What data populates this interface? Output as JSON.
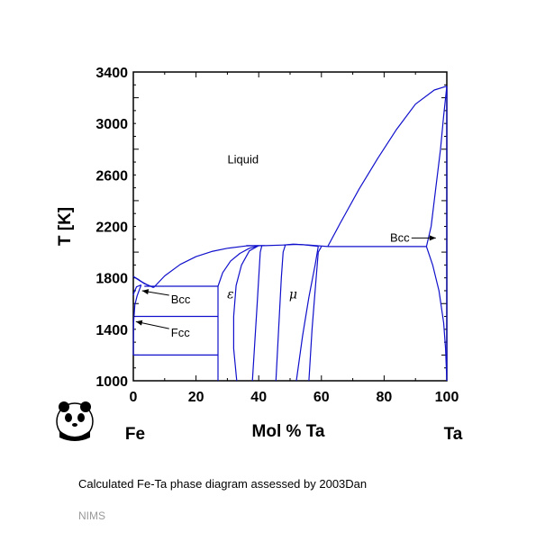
{
  "chart_data": {
    "type": "line",
    "xlabel": "Mol % Ta",
    "ylabel": "T [K]",
    "xlim": [
      0,
      100
    ],
    "ylim": [
      1000,
      3400
    ],
    "x_ticks": [
      0,
      20,
      40,
      60,
      80,
      100
    ],
    "y_ticks": [
      1000,
      1400,
      1800,
      2200,
      2600,
      3000,
      3400
    ],
    "x_tick_labels": [
      "0",
      "20",
      "40",
      "60",
      "80",
      "100"
    ],
    "y_tick_labels": [
      "1000",
      "1400",
      "1800",
      "2200",
      "2600",
      "3000",
      "3400"
    ],
    "line_color": "#1010cc",
    "components": {
      "left": "Fe",
      "right": "Ta"
    },
    "region_labels": {
      "liquid": {
        "text": "Liquid",
        "x": 35,
        "y": 2690
      },
      "epsilon": {
        "text": "ε",
        "x": 31,
        "y": 1640
      },
      "mu": {
        "text": "μ",
        "x": 51,
        "y": 1640
      }
    },
    "annotations": [
      {
        "text": "Bcc",
        "text_x": 12,
        "text_y": 1630,
        "arrow_to_x": 2.8,
        "arrow_to_y": 1700
      },
      {
        "text": "Fcc",
        "text_x": 12,
        "text_y": 1370,
        "arrow_to_x": 0.8,
        "arrow_to_y": 1460
      },
      {
        "text": "Bcc",
        "text_x": 85,
        "text_y": 2110,
        "arrow_to_x": 96.5,
        "arrow_to_y": 2110
      }
    ],
    "series": [
      {
        "points": [
          [
            0,
            1810
          ],
          [
            1.5,
            1790
          ],
          [
            3.5,
            1755
          ],
          [
            6.5,
            1725
          ]
        ]
      },
      {
        "points": [
          [
            0,
            1810
          ],
          [
            2,
            1778
          ],
          [
            4.5,
            1745
          ],
          [
            6.5,
            1725
          ]
        ]
      },
      {
        "points": [
          [
            0,
            1665
          ],
          [
            0.3,
            1690
          ],
          [
            1,
            1730
          ],
          [
            2.5,
            1745
          ]
        ]
      },
      {
        "points": [
          [
            0,
            1200
          ],
          [
            0.1,
            1450
          ],
          [
            0.5,
            1590
          ],
          [
            1.2,
            1660
          ],
          [
            2.5,
            1745
          ]
        ]
      },
      {
        "points": [
          [
            6.5,
            1725
          ],
          [
            10,
            1815
          ],
          [
            15,
            1905
          ],
          [
            20,
            1965
          ],
          [
            25,
            2005
          ],
          [
            30,
            2030
          ],
          [
            36,
            2048
          ],
          [
            42,
            2050
          ],
          [
            48,
            2055
          ],
          [
            52,
            2060
          ],
          [
            56,
            2055
          ],
          [
            62,
            2043
          ]
        ]
      },
      {
        "points": [
          [
            3.5,
            1735
          ],
          [
            27,
            1735
          ]
        ]
      },
      {
        "points": [
          [
            0.6,
            1500
          ],
          [
            27,
            1500
          ]
        ]
      },
      {
        "points": [
          [
            0,
            1200
          ],
          [
            27,
            1200
          ]
        ]
      },
      {
        "points": [
          [
            27,
            1735
          ],
          [
            27,
            1000
          ]
        ]
      },
      {
        "points": [
          [
            27,
            1735
          ],
          [
            28.5,
            1840
          ],
          [
            31,
            1930
          ],
          [
            34,
            1990
          ],
          [
            37,
            2030
          ],
          [
            40,
            2050
          ]
        ]
      },
      {
        "points": [
          [
            33,
            1000
          ],
          [
            32,
            1250
          ],
          [
            32,
            1500
          ],
          [
            32.8,
            1740
          ],
          [
            34.5,
            1900
          ],
          [
            37,
            2010
          ],
          [
            40,
            2050
          ]
        ]
      },
      {
        "points": [
          [
            36,
            2050
          ],
          [
            42,
            2050
          ]
        ]
      },
      {
        "points": [
          [
            38,
            1000
          ],
          [
            39.5,
            1600
          ],
          [
            40.5,
            2000
          ],
          [
            41,
            2050
          ]
        ]
      },
      {
        "points": [
          [
            45.5,
            1000
          ],
          [
            47.2,
            1800
          ],
          [
            47.8,
            2000
          ],
          [
            48.5,
            2055
          ]
        ]
      },
      {
        "points": [
          [
            52,
            1000
          ],
          [
            54,
            1350
          ],
          [
            56,
            1650
          ],
          [
            58,
            1900
          ],
          [
            59,
            2045
          ]
        ]
      },
      {
        "points": [
          [
            48,
            2055
          ],
          [
            51,
            2062
          ],
          [
            54,
            2058
          ],
          [
            59,
            2045
          ]
        ]
      },
      {
        "points": [
          [
            56,
            1000
          ],
          [
            57,
            1400
          ],
          [
            58,
            1700
          ],
          [
            59,
            2000
          ],
          [
            60,
            2043
          ]
        ]
      },
      {
        "points": [
          [
            62,
            2043
          ],
          [
            93.5,
            2043
          ]
        ]
      },
      {
        "points": [
          [
            62,
            2043
          ],
          [
            66,
            2225
          ],
          [
            72,
            2490
          ],
          [
            78,
            2730
          ],
          [
            84,
            2955
          ],
          [
            90,
            3150
          ],
          [
            96,
            3260
          ],
          [
            100,
            3290
          ]
        ]
      },
      {
        "points": [
          [
            93.5,
            2043
          ],
          [
            95,
            2200
          ],
          [
            96.5,
            2500
          ],
          [
            98,
            2800
          ],
          [
            99,
            3060
          ],
          [
            100,
            3290
          ]
        ]
      },
      {
        "points": [
          [
            93.5,
            2043
          ],
          [
            95.5,
            1900
          ],
          [
            97.5,
            1700
          ],
          [
            99,
            1450
          ],
          [
            99.6,
            1250
          ],
          [
            100,
            1000
          ]
        ]
      },
      {
        "points": [
          [
            100,
            1000
          ],
          [
            100,
            3290
          ]
        ]
      }
    ]
  },
  "caption": "Calculated Fe-Ta phase diagram assessed by 2003Dan",
  "source": "NIMS",
  "logo": {
    "icon": "panda-icon"
  }
}
